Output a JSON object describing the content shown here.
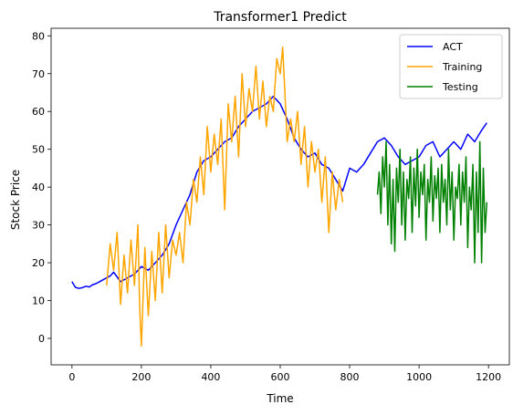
{
  "chart_data": {
    "type": "line",
    "title": "Transformer1 Predict",
    "xlabel": "Time",
    "ylabel": "Stock Price",
    "xlim": [
      -60,
      1260
    ],
    "ylim": [
      -7,
      82
    ],
    "xticks": [
      0,
      200,
      400,
      600,
      800,
      1000,
      1200
    ],
    "yticks": [
      0,
      10,
      20,
      30,
      40,
      50,
      60,
      70,
      80
    ],
    "grid": false,
    "legend_position": "top-right",
    "series": [
      {
        "name": "ACT",
        "color": "#0000ff",
        "x": [
          0,
          10,
          20,
          30,
          40,
          50,
          60,
          70,
          80,
          90,
          100,
          110,
          120,
          140,
          160,
          180,
          200,
          220,
          240,
          260,
          280,
          300,
          320,
          340,
          360,
          380,
          400,
          420,
          440,
          460,
          480,
          500,
          520,
          540,
          560,
          580,
          600,
          620,
          640,
          660,
          680,
          700,
          720,
          740,
          760,
          780,
          800,
          820,
          840,
          860,
          880,
          900,
          920,
          940,
          960,
          980,
          1000,
          1020,
          1040,
          1060,
          1080,
          1100,
          1120,
          1140,
          1160,
          1180,
          1195
        ],
        "y": [
          15,
          13.5,
          13.2,
          13.4,
          13.8,
          13.6,
          14.2,
          14.5,
          15,
          15.5,
          16,
          16.5,
          17.5,
          15,
          16,
          17,
          19,
          18,
          20,
          22,
          25,
          30,
          34,
          38,
          44,
          47,
          48,
          50,
          52,
          53,
          56,
          58,
          60,
          61,
          62,
          64,
          62,
          58,
          53,
          50,
          48,
          49,
          46,
          45,
          42,
          39,
          45,
          44,
          46,
          49,
          52,
          53,
          51,
          48,
          46,
          47,
          48,
          51,
          52,
          48,
          50,
          52,
          50,
          54,
          52,
          55,
          57
        ]
      },
      {
        "name": "Training",
        "color": "#ffa500",
        "x": [
          100,
          110,
          120,
          130,
          140,
          150,
          160,
          170,
          180,
          190,
          195,
          200,
          210,
          220,
          230,
          240,
          250,
          260,
          270,
          280,
          290,
          300,
          310,
          320,
          330,
          340,
          350,
          360,
          370,
          380,
          390,
          400,
          410,
          420,
          430,
          440,
          450,
          460,
          470,
          480,
          490,
          500,
          510,
          520,
          530,
          540,
          550,
          560,
          570,
          580,
          590,
          600,
          607,
          615,
          620,
          630,
          640,
          650,
          660,
          670,
          680,
          690,
          700,
          710,
          720,
          730,
          740,
          750,
          760,
          770,
          780
        ],
        "y": [
          14,
          25,
          18,
          28,
          9,
          22,
          12,
          26,
          14,
          30,
          8,
          -2,
          24,
          6,
          23,
          10,
          28,
          12,
          30,
          16,
          26,
          22,
          28,
          20,
          36,
          30,
          42,
          36,
          48,
          38,
          56,
          44,
          54,
          46,
          58,
          34,
          62,
          52,
          64,
          48,
          70,
          56,
          66,
          60,
          72,
          58,
          68,
          56,
          64,
          60,
          74,
          70,
          77,
          62,
          52,
          58,
          52,
          60,
          46,
          56,
          40,
          52,
          44,
          50,
          36,
          48,
          28,
          44,
          34,
          42,
          36
        ]
      },
      {
        "name": "Testing",
        "color": "#008000",
        "x": [
          880,
          885,
          890,
          895,
          900,
          905,
          910,
          915,
          920,
          925,
          930,
          935,
          940,
          945,
          950,
          955,
          960,
          965,
          970,
          975,
          980,
          985,
          990,
          995,
          1000,
          1005,
          1010,
          1015,
          1020,
          1025,
          1030,
          1035,
          1040,
          1045,
          1050,
          1055,
          1060,
          1065,
          1070,
          1075,
          1080,
          1085,
          1090,
          1095,
          1100,
          1105,
          1110,
          1115,
          1120,
          1125,
          1130,
          1135,
          1140,
          1145,
          1150,
          1155,
          1160,
          1165,
          1170,
          1175,
          1180,
          1185,
          1190,
          1195
        ],
        "y": [
          38,
          44,
          33,
          48,
          40,
          52,
          30,
          46,
          25,
          42,
          23,
          45,
          36,
          50,
          30,
          44,
          26,
          42,
          37,
          48,
          28,
          45,
          35,
          50,
          32,
          44,
          38,
          46,
          26,
          42,
          36,
          48,
          31,
          43,
          37,
          45,
          28,
          46,
          36,
          42,
          30,
          50,
          34,
          44,
          26,
          40,
          37,
          46,
          30,
          44,
          36,
          48,
          24,
          40,
          34,
          46,
          20,
          44,
          28,
          52,
          20,
          45,
          28,
          36
        ]
      }
    ]
  }
}
